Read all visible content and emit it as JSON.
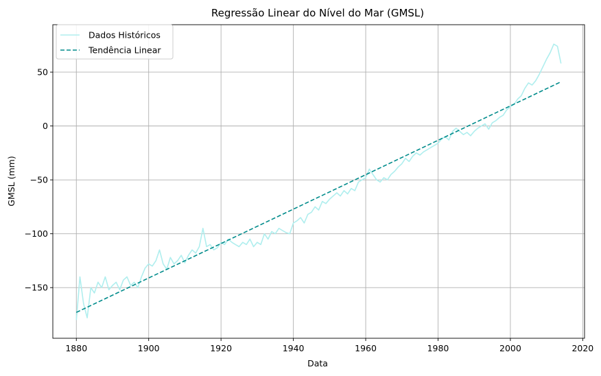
{
  "chart_data": {
    "type": "line",
    "title": "Regressão Linear do Nível do Mar (GMSL)",
    "xlabel": "Data",
    "ylabel": "GMSL (mm)",
    "xlim": [
      1873.5,
      2020.5
    ],
    "ylim": [
      -197,
      94
    ],
    "xticks": [
      1880,
      1900,
      1920,
      1940,
      1960,
      1980,
      2000,
      2020
    ],
    "yticks": [
      -150,
      -100,
      -50,
      0,
      50
    ],
    "ytick_labels": [
      "−150",
      "−100",
      "−50",
      "0",
      "50"
    ],
    "grid": true,
    "legend_position": "top-left",
    "colors": {
      "historical": "#afeeee",
      "trend": "#008b8b",
      "grid": "#b0b0b0"
    },
    "series": [
      {
        "name": "Dados Históricos",
        "style": "solid",
        "x": [
          1880,
          1881,
          1882,
          1883,
          1884,
          1885,
          1886,
          1887,
          1888,
          1889,
          1890,
          1891,
          1892,
          1893,
          1894,
          1895,
          1896,
          1897,
          1898,
          1899,
          1900,
          1901,
          1902,
          1903,
          1904,
          1905,
          1906,
          1907,
          1908,
          1909,
          1910,
          1911,
          1912,
          1913,
          1914,
          1915,
          1916,
          1917,
          1918,
          1919,
          1920,
          1921,
          1922,
          1923,
          1924,
          1925,
          1926,
          1927,
          1928,
          1929,
          1930,
          1931,
          1932,
          1933,
          1934,
          1935,
          1936,
          1937,
          1938,
          1939,
          1940,
          1941,
          1942,
          1943,
          1944,
          1945,
          1946,
          1947,
          1948,
          1949,
          1950,
          1951,
          1952,
          1953,
          1954,
          1955,
          1956,
          1957,
          1958,
          1959,
          1960,
          1961,
          1962,
          1963,
          1964,
          1965,
          1966,
          1967,
          1968,
          1969,
          1970,
          1971,
          1972,
          1973,
          1974,
          1975,
          1976,
          1977,
          1978,
          1979,
          1980,
          1981,
          1982,
          1983,
          1984,
          1985,
          1986,
          1987,
          1988,
          1989,
          1990,
          1991,
          1992,
          1993,
          1994,
          1995,
          1996,
          1997,
          1998,
          1999,
          2000,
          2001,
          2002,
          2003,
          2004,
          2005,
          2006,
          2007,
          2008,
          2009,
          2010,
          2011,
          2012,
          2013,
          2014
        ],
        "values": [
          -180,
          -140,
          -165,
          -178,
          -150,
          -155,
          -145,
          -150,
          -140,
          -152,
          -148,
          -145,
          -152,
          -143,
          -140,
          -148,
          -145,
          -150,
          -140,
          -132,
          -128,
          -130,
          -125,
          -115,
          -128,
          -133,
          -122,
          -128,
          -125,
          -120,
          -127,
          -120,
          -115,
          -118,
          -112,
          -95,
          -112,
          -110,
          -115,
          -113,
          -108,
          -110,
          -105,
          -108,
          -110,
          -112,
          -108,
          -110,
          -105,
          -112,
          -108,
          -110,
          -100,
          -105,
          -98,
          -100,
          -95,
          -97,
          -99,
          -100,
          -90,
          -88,
          -85,
          -90,
          -82,
          -80,
          -75,
          -78,
          -70,
          -72,
          -68,
          -65,
          -62,
          -65,
          -60,
          -63,
          -58,
          -60,
          -52,
          -50,
          -48,
          -40,
          -45,
          -50,
          -52,
          -48,
          -50,
          -45,
          -42,
          -38,
          -35,
          -30,
          -33,
          -28,
          -25,
          -27,
          -24,
          -22,
          -20,
          -18,
          -16,
          -12,
          -10,
          -13,
          -5,
          -2,
          -5,
          -8,
          -6,
          -9,
          -5,
          -2,
          0,
          2,
          -3,
          3,
          5,
          8,
          10,
          15,
          18,
          20,
          25,
          28,
          35,
          40,
          38,
          42,
          48,
          55,
          62,
          68,
          76,
          74,
          58
        ]
      },
      {
        "name": "Tendência Linear",
        "style": "dashed",
        "x": [
          1880,
          2014
        ],
        "values": [
          -173,
          41
        ]
      }
    ]
  }
}
